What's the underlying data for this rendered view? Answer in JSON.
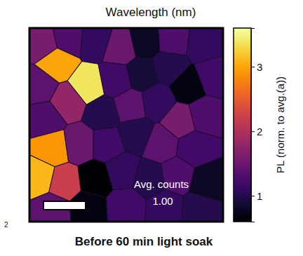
{
  "chart_data": {
    "type": "heatmap",
    "title": "Wavelength (nm)",
    "caption": "Before 60 min light soak",
    "annotations": [
      "Avg. counts",
      "1.00",
      "2"
    ],
    "xlim": [
      0,
      1
    ],
    "ylim": [
      0,
      1
    ],
    "tick_labels": false,
    "color": "inferno",
    "colorbar": {
      "label": "PL (norm. to avg.(a))",
      "range": [
        0.6,
        3.6
      ],
      "ticks": [
        1,
        2,
        3
      ]
    },
    "grains": [
      {
        "x": 0.07,
        "y": 0.08,
        "value": 1.6
      },
      {
        "x": 0.2,
        "y": 0.05,
        "value": 1.3
      },
      {
        "x": 0.14,
        "y": 0.18,
        "value": 3.0
      },
      {
        "x": 0.34,
        "y": 0.06,
        "value": 1.1
      },
      {
        "x": 0.47,
        "y": 0.1,
        "value": 1.5
      },
      {
        "x": 0.6,
        "y": 0.07,
        "value": 0.8
      },
      {
        "x": 0.74,
        "y": 0.06,
        "value": 1.3
      },
      {
        "x": 0.9,
        "y": 0.08,
        "value": 1.1
      },
      {
        "x": 0.05,
        "y": 0.3,
        "value": 1.4
      },
      {
        "x": 0.3,
        "y": 0.3,
        "value": 3.4
      },
      {
        "x": 0.2,
        "y": 0.38,
        "value": 1.8
      },
      {
        "x": 0.45,
        "y": 0.27,
        "value": 1.2
      },
      {
        "x": 0.58,
        "y": 0.24,
        "value": 0.9
      },
      {
        "x": 0.72,
        "y": 0.2,
        "value": 1.0
      },
      {
        "x": 0.82,
        "y": 0.3,
        "value": 0.7
      },
      {
        "x": 0.95,
        "y": 0.25,
        "value": 1.2
      },
      {
        "x": 0.08,
        "y": 0.47,
        "value": 1.3
      },
      {
        "x": 0.38,
        "y": 0.44,
        "value": 1.0
      },
      {
        "x": 0.52,
        "y": 0.4,
        "value": 1.4
      },
      {
        "x": 0.66,
        "y": 0.38,
        "value": 1.1
      },
      {
        "x": 0.9,
        "y": 0.45,
        "value": 1.3
      },
      {
        "x": 0.78,
        "y": 0.48,
        "value": 1.6
      },
      {
        "x": 0.12,
        "y": 0.62,
        "value": 2.9
      },
      {
        "x": 0.26,
        "y": 0.6,
        "value": 1.5
      },
      {
        "x": 0.4,
        "y": 0.6,
        "value": 1.2
      },
      {
        "x": 0.55,
        "y": 0.55,
        "value": 1.0
      },
      {
        "x": 0.68,
        "y": 0.6,
        "value": 1.4
      },
      {
        "x": 0.85,
        "y": 0.62,
        "value": 1.2
      },
      {
        "x": 0.05,
        "y": 0.77,
        "value": 3.1
      },
      {
        "x": 0.18,
        "y": 0.8,
        "value": 2.2
      },
      {
        "x": 0.34,
        "y": 0.78,
        "value": 0.6
      },
      {
        "x": 0.48,
        "y": 0.74,
        "value": 1.1
      },
      {
        "x": 0.62,
        "y": 0.78,
        "value": 1.0
      },
      {
        "x": 0.76,
        "y": 0.76,
        "value": 1.3
      },
      {
        "x": 0.92,
        "y": 0.8,
        "value": 0.8
      },
      {
        "x": 0.12,
        "y": 0.94,
        "value": 1.4
      },
      {
        "x": 0.3,
        "y": 0.93,
        "value": 0.7
      },
      {
        "x": 0.5,
        "y": 0.92,
        "value": 1.2
      },
      {
        "x": 0.7,
        "y": 0.93,
        "value": 1.1
      },
      {
        "x": 0.88,
        "y": 0.94,
        "value": 1.0
      }
    ]
  }
}
